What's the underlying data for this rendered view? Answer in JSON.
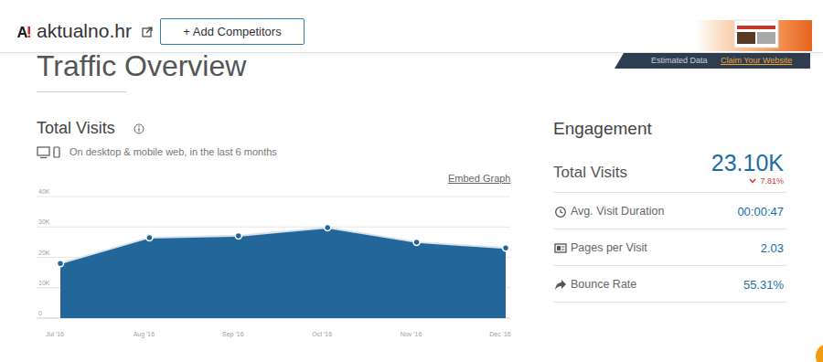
{
  "page": {
    "site": "aktualno.hr",
    "add_competitors": "+ Add Competitors",
    "section_title": "Traffic Overview",
    "estimated": "Estimated Data",
    "claim": "Claim Your Website",
    "embed": "Embed Graph"
  },
  "chart_data": {
    "type": "area",
    "title": "Total Visits",
    "subtitle": "On desktop & mobile web, in the last 6 months",
    "categories": [
      "Jul '16",
      "Aug '16",
      "Sep '16",
      "Oct '16",
      "Nov '16",
      "Dec '16"
    ],
    "values": [
      18000,
      26500,
      27100,
      29800,
      25000,
      23100
    ],
    "color": "#23679a",
    "marker": "circle",
    "ylim": [
      0,
      40000
    ],
    "yticks": [
      0,
      {
        "value": 10000,
        "label": "10K"
      },
      {
        "value": 20000,
        "label": "20K"
      },
      {
        "value": 30000,
        "label": "30K"
      },
      {
        "value": 40000,
        "label": "40K"
      }
    ],
    "grid": true
  },
  "engagement": {
    "title": "Engagement",
    "metrics": [
      {
        "label": "Total Visits",
        "value": "23.10K",
        "change": "7.81%"
      },
      {
        "label": "Avg. Visit Duration",
        "value": "00:00:47"
      },
      {
        "label": "Pages per Visit",
        "value": "2.03"
      },
      {
        "label": "Bounce Rate",
        "value": "55.31%"
      }
    ]
  }
}
